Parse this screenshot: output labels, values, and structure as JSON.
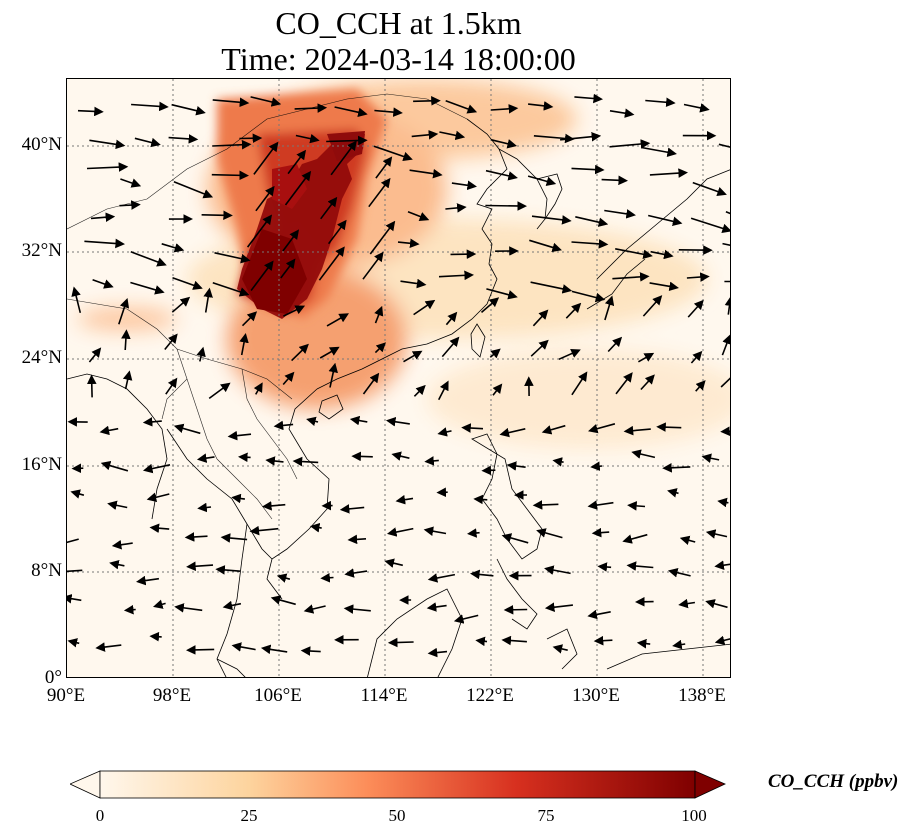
{
  "title_line1": "CO_CCH at 1.5km",
  "title_line2": "Time: 2024-03-14 18:00:00",
  "lat_ticks": [
    "40°N",
    "32°N",
    "24°N",
    "16°N",
    "8°N",
    "0°"
  ],
  "lon_ticks": [
    "90°E",
    "98°E",
    "106°E",
    "114°E",
    "122°E",
    "130°E",
    "138°E"
  ],
  "colorbar": {
    "label": "CO_CCH (ppbv)",
    "ticks": [
      "0",
      "25",
      "50",
      "75",
      "100"
    ],
    "range": [
      0,
      100
    ],
    "colormap": "OrRd",
    "extend": "both"
  },
  "map": {
    "lon_range": [
      90,
      140
    ],
    "lat_range": [
      0,
      45
    ],
    "gridlines": "dotted",
    "features": [
      "coastlines",
      "country-borders",
      "wind-vectors"
    ]
  }
}
